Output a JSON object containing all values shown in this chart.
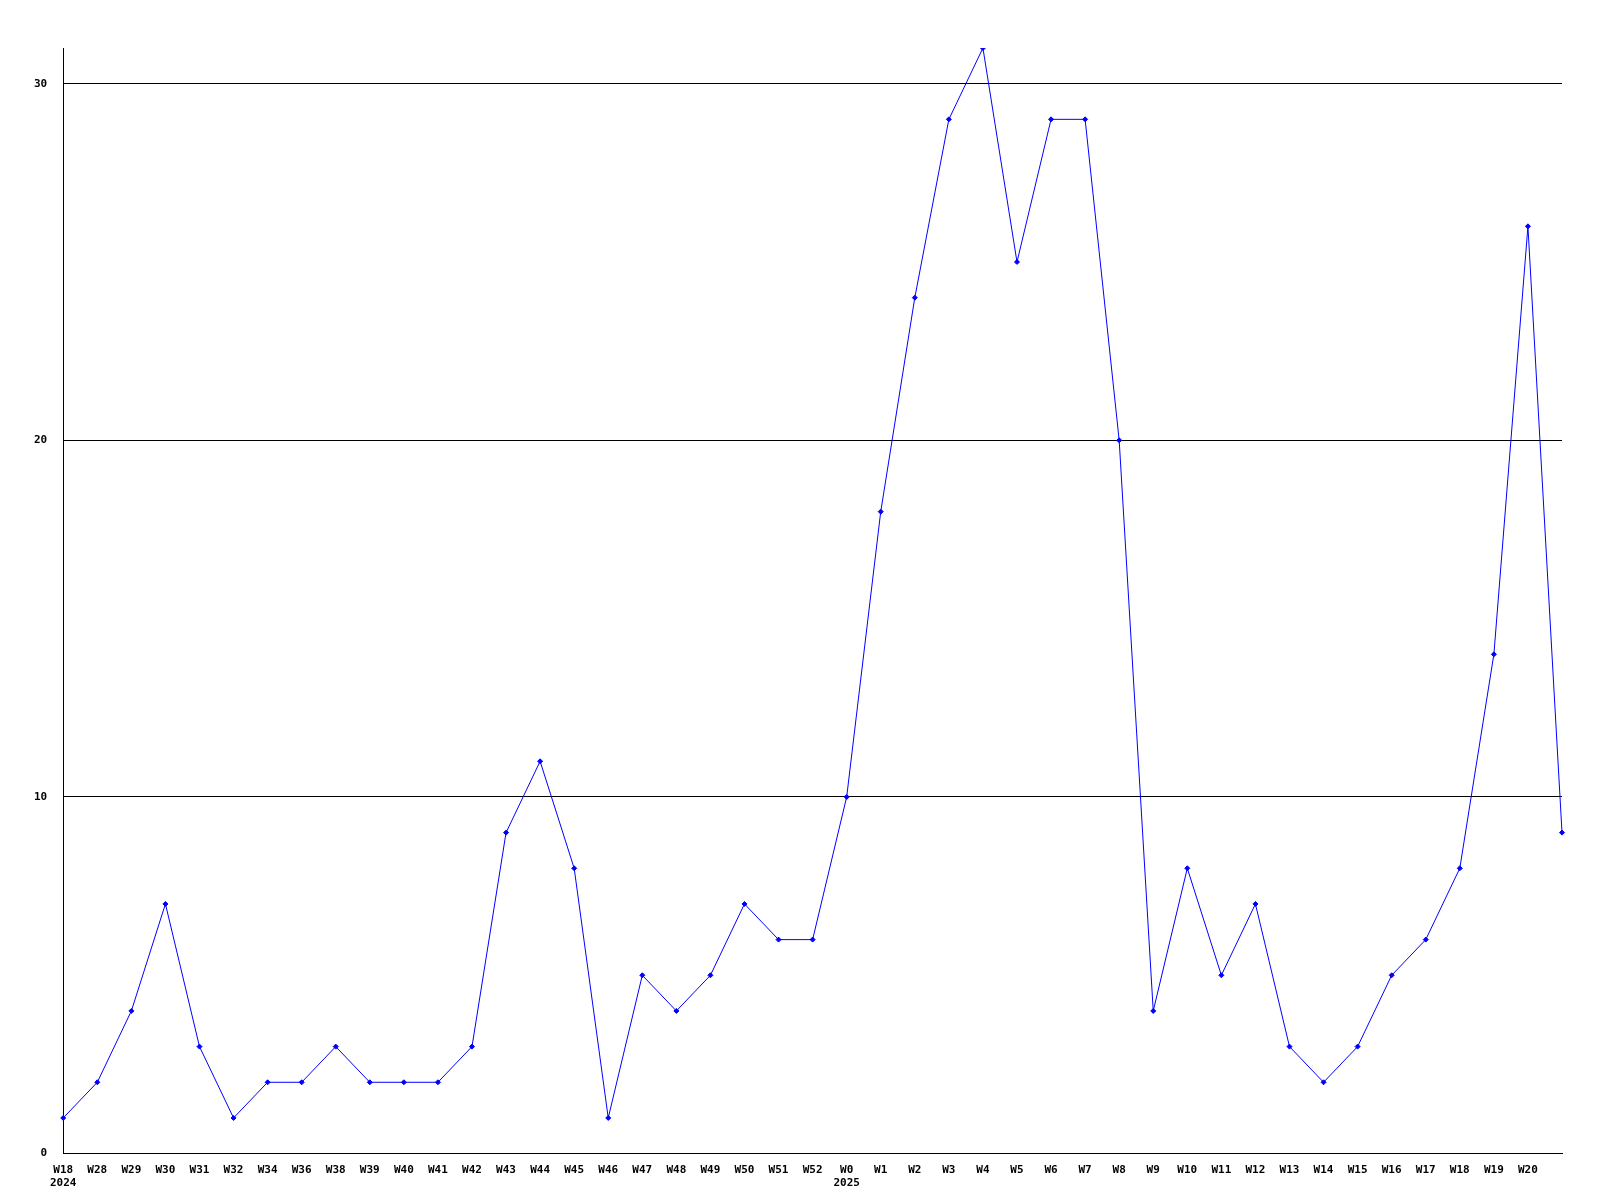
{
  "chart_data": {
    "type": "line",
    "categories": [
      "W18\n2024",
      "W28",
      "W29",
      "W30",
      "W31",
      "W32",
      "W34",
      "W36",
      "W38",
      "W39",
      "W40",
      "W41",
      "W42",
      "W43",
      "W44",
      "W45",
      "W46",
      "W47",
      "W48",
      "W49",
      "W50",
      "W51",
      "W52",
      "W0\n2025",
      "W1",
      "W2",
      "W3",
      "W4",
      "W5",
      "W6",
      "W7",
      "W8",
      "W9",
      "W10",
      "W11",
      "W12",
      "W13",
      "W14",
      "W15",
      "W16",
      "W17",
      "W18",
      "W19",
      "W20",
      null
    ],
    "series": [
      {
        "color": "#0000ff",
        "values": [
          1,
          2,
          4,
          7,
          3,
          1,
          2,
          2,
          3,
          2,
          2,
          2,
          3,
          9,
          11,
          8,
          1,
          5,
          4,
          5,
          7,
          6,
          6,
          10,
          18,
          24,
          29,
          31,
          25,
          29,
          29,
          20,
          4,
          8,
          5,
          7,
          3,
          2,
          3,
          5,
          6,
          8,
          14,
          26,
          9
        ]
      }
    ],
    "ylim": [
      0,
      31
    ],
    "yticks": [
      0,
      10,
      20,
      30
    ],
    "grid": "y",
    "legend": false,
    "marker": "diamond",
    "line_style": "solid"
  }
}
